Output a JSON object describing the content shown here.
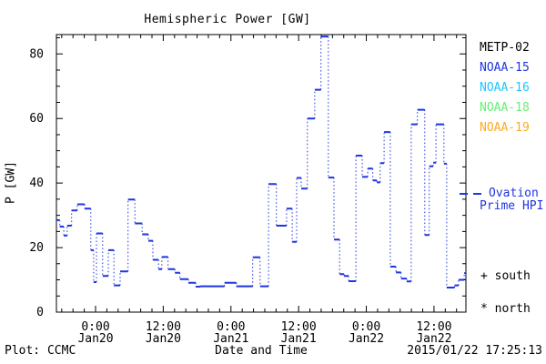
{
  "title": "Hemispheric Power [GW]",
  "y_axis_label": "P [GW]",
  "x_axis_label": "Date and Time",
  "footer_left": "Plot: CCMC",
  "footer_right": "2015/01/22 17:25:13",
  "legend": {
    "satellites": [
      {
        "label": "METP-02",
        "color": "#000000"
      },
      {
        "label": "NOAA-15",
        "color": "#1f35e0"
      },
      {
        "label": "NOAA-16",
        "color": "#22c4ff"
      },
      {
        "label": "NOAA-18",
        "color": "#66ee77"
      },
      {
        "label": "NOAA-19",
        "color": "#ffaa22"
      },
      {
        "label": "NOAA-19",
        "color": "#ffaa22"
      }
    ],
    "line_series": {
      "label_line1": "Ovation",
      "label_line2": "Prime HPI",
      "color": "#1f35e0"
    },
    "markers": [
      {
        "symbol": "+",
        "label": "south"
      },
      {
        "symbol": "*",
        "label": "north"
      }
    ]
  },
  "chart_data": {
    "type": "line",
    "style": "stairstep: solid horizontal segments joined by dotted vertical connectors",
    "series_name": "Ovation Prime HPI",
    "color": "#1f35e0",
    "title": "Hemispheric Power [GW]",
    "xlabel": "Date and Time",
    "ylabel": "P [GW]",
    "grid": false,
    "ylim": [
      0,
      86
    ],
    "y_major_ticks": [
      0,
      20,
      40,
      60,
      80
    ],
    "y_minor_step": 5,
    "x_unit": "hours since 2015-01-19 ~17:00 UT (left edge of plot)",
    "xlim_hours": [
      0,
      72.6
    ],
    "x_major_ticks": [
      {
        "hour": 6.94,
        "time": "0:00",
        "date": "Jan20"
      },
      {
        "hour": 18.94,
        "time": "12:00",
        "date": "Jan20"
      },
      {
        "hour": 30.94,
        "time": "0:00",
        "date": "Jan21"
      },
      {
        "hour": 42.94,
        "time": "12:00",
        "date": "Jan21"
      },
      {
        "hour": 54.94,
        "time": "0:00",
        "date": "Jan22"
      },
      {
        "hour": 66.94,
        "time": "12:00",
        "date": "Jan22"
      }
    ],
    "x_minor_start_hour": 0.94,
    "x_minor_step_hours": 2,
    "segments_hour_start_end_gw": [
      [
        0.0,
        0.6,
        28.5
      ],
      [
        0.6,
        1.3,
        26.5
      ],
      [
        1.3,
        1.9,
        23.7
      ],
      [
        1.9,
        2.7,
        26.8
      ],
      [
        2.7,
        3.7,
        31.5
      ],
      [
        3.7,
        5.0,
        33.4
      ],
      [
        5.0,
        6.1,
        32.1
      ],
      [
        6.1,
        6.6,
        19.2
      ],
      [
        6.6,
        7.1,
        9.3
      ],
      [
        7.1,
        8.2,
        24.4
      ],
      [
        8.2,
        9.2,
        11.2
      ],
      [
        9.2,
        10.2,
        19.2
      ],
      [
        10.2,
        11.3,
        8.3
      ],
      [
        11.3,
        12.7,
        12.6
      ],
      [
        12.7,
        13.9,
        34.9
      ],
      [
        13.9,
        15.2,
        27.5
      ],
      [
        15.2,
        16.3,
        24.1
      ],
      [
        16.3,
        17.1,
        22.1
      ],
      [
        17.1,
        18.1,
        16.2
      ],
      [
        18.1,
        18.7,
        13.3
      ],
      [
        18.7,
        19.8,
        17.1
      ],
      [
        19.8,
        21.0,
        13.3
      ],
      [
        21.0,
        21.9,
        12.2
      ],
      [
        21.9,
        23.4,
        10.2
      ],
      [
        23.4,
        24.7,
        9.1
      ],
      [
        24.7,
        25.5,
        7.9
      ],
      [
        25.5,
        29.8,
        8.0
      ],
      [
        29.8,
        31.9,
        9.1
      ],
      [
        31.9,
        34.8,
        8.0
      ],
      [
        34.8,
        36.1,
        17.0
      ],
      [
        36.1,
        37.6,
        8.0
      ],
      [
        37.6,
        39.0,
        39.7
      ],
      [
        39.0,
        40.8,
        26.8
      ],
      [
        40.8,
        41.8,
        32.1
      ],
      [
        41.8,
        42.6,
        21.8
      ],
      [
        42.6,
        43.4,
        41.6
      ],
      [
        43.4,
        44.5,
        38.3
      ],
      [
        44.5,
        45.8,
        60.0
      ],
      [
        45.8,
        46.9,
        68.9
      ],
      [
        46.9,
        48.2,
        85.4
      ],
      [
        48.2,
        49.2,
        41.7
      ],
      [
        49.2,
        50.2,
        22.5
      ],
      [
        50.2,
        51.0,
        11.8
      ],
      [
        51.0,
        51.8,
        11.2
      ],
      [
        51.8,
        53.1,
        9.6
      ],
      [
        53.1,
        54.2,
        48.5
      ],
      [
        54.2,
        55.2,
        41.9
      ],
      [
        55.2,
        56.1,
        44.5
      ],
      [
        56.1,
        56.8,
        40.8
      ],
      [
        56.8,
        57.4,
        40.2
      ],
      [
        57.4,
        58.1,
        46.2
      ],
      [
        58.1,
        59.2,
        55.8
      ],
      [
        59.2,
        60.2,
        14.1
      ],
      [
        60.2,
        61.1,
        12.3
      ],
      [
        61.1,
        62.1,
        10.4
      ],
      [
        62.1,
        62.9,
        9.5
      ],
      [
        62.9,
        64.0,
        58.2
      ],
      [
        64.0,
        65.3,
        62.7
      ],
      [
        65.3,
        66.1,
        23.9
      ],
      [
        66.1,
        66.8,
        45.2
      ],
      [
        66.8,
        67.3,
        46.3
      ],
      [
        67.3,
        68.7,
        58.2
      ],
      [
        68.7,
        69.2,
        46.0
      ],
      [
        69.2,
        70.6,
        7.6
      ],
      [
        70.6,
        71.3,
        8.3
      ],
      [
        71.3,
        72.3,
        10.0
      ],
      [
        72.3,
        72.6,
        12.1
      ]
    ]
  }
}
